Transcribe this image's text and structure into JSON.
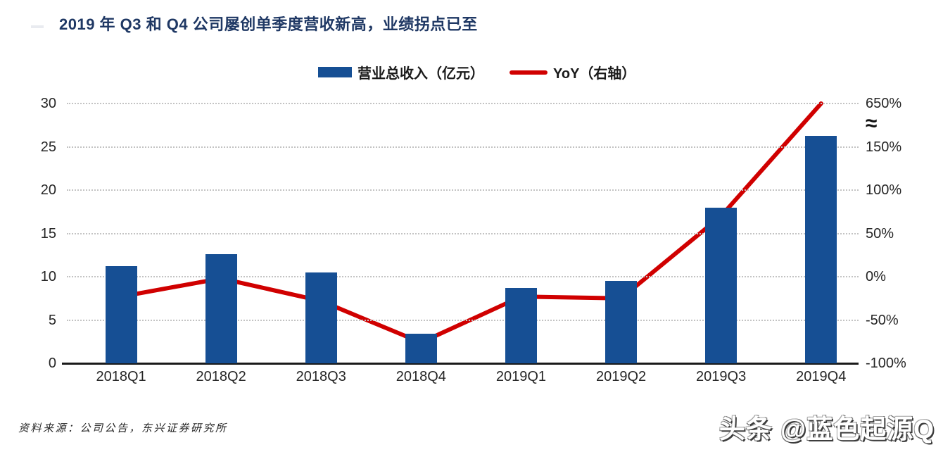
{
  "title": "2019 年 Q3 和 Q4 公司屡创单季度营收新高，业绩拐点已至",
  "colors": {
    "title": "#1F3864",
    "bar": "#164F94",
    "line": "#D00000",
    "gridline": "#C3C3C3"
  },
  "legend": [
    {
      "label": "营业总收入（亿元）",
      "type": "bar",
      "color": "#164F94"
    },
    {
      "label": "YoY（右轴）",
      "type": "line",
      "color": "#D00000"
    }
  ],
  "chart_data": {
    "type": "combo",
    "categories": [
      "2018Q1",
      "2018Q2",
      "2018Q3",
      "2018Q4",
      "2019Q1",
      "2019Q2",
      "2019Q3",
      "2019Q4"
    ],
    "series": [
      {
        "name": "营业总收入（亿元）",
        "type": "bar",
        "axis": "left",
        "values": [
          11.2,
          12.6,
          10.5,
          3.4,
          8.7,
          9.5,
          18.0,
          26.3
        ]
      },
      {
        "name": "YoY（右轴）",
        "type": "line",
        "axis": "right",
        "unit": "%",
        "values": [
          -23,
          -2,
          -28,
          -76,
          -23,
          -25,
          70,
          650
        ]
      }
    ],
    "left_axis": {
      "ticks": [
        0,
        5,
        10,
        15,
        20,
        25,
        30
      ],
      "range": [
        0,
        30
      ]
    },
    "right_axis": {
      "tick_labels": [
        "-100%",
        "-50%",
        "0%",
        "50%",
        "100%",
        "150%",
        "650%"
      ],
      "break_symbol": "≈",
      "break_between": [
        "150%",
        "650%"
      ]
    },
    "grid": "dotted horizontal",
    "legend_position": "top-center"
  },
  "source": "资料来源：公司公告，东兴证券研究所",
  "watermark": "头条 @蓝色起源Q"
}
